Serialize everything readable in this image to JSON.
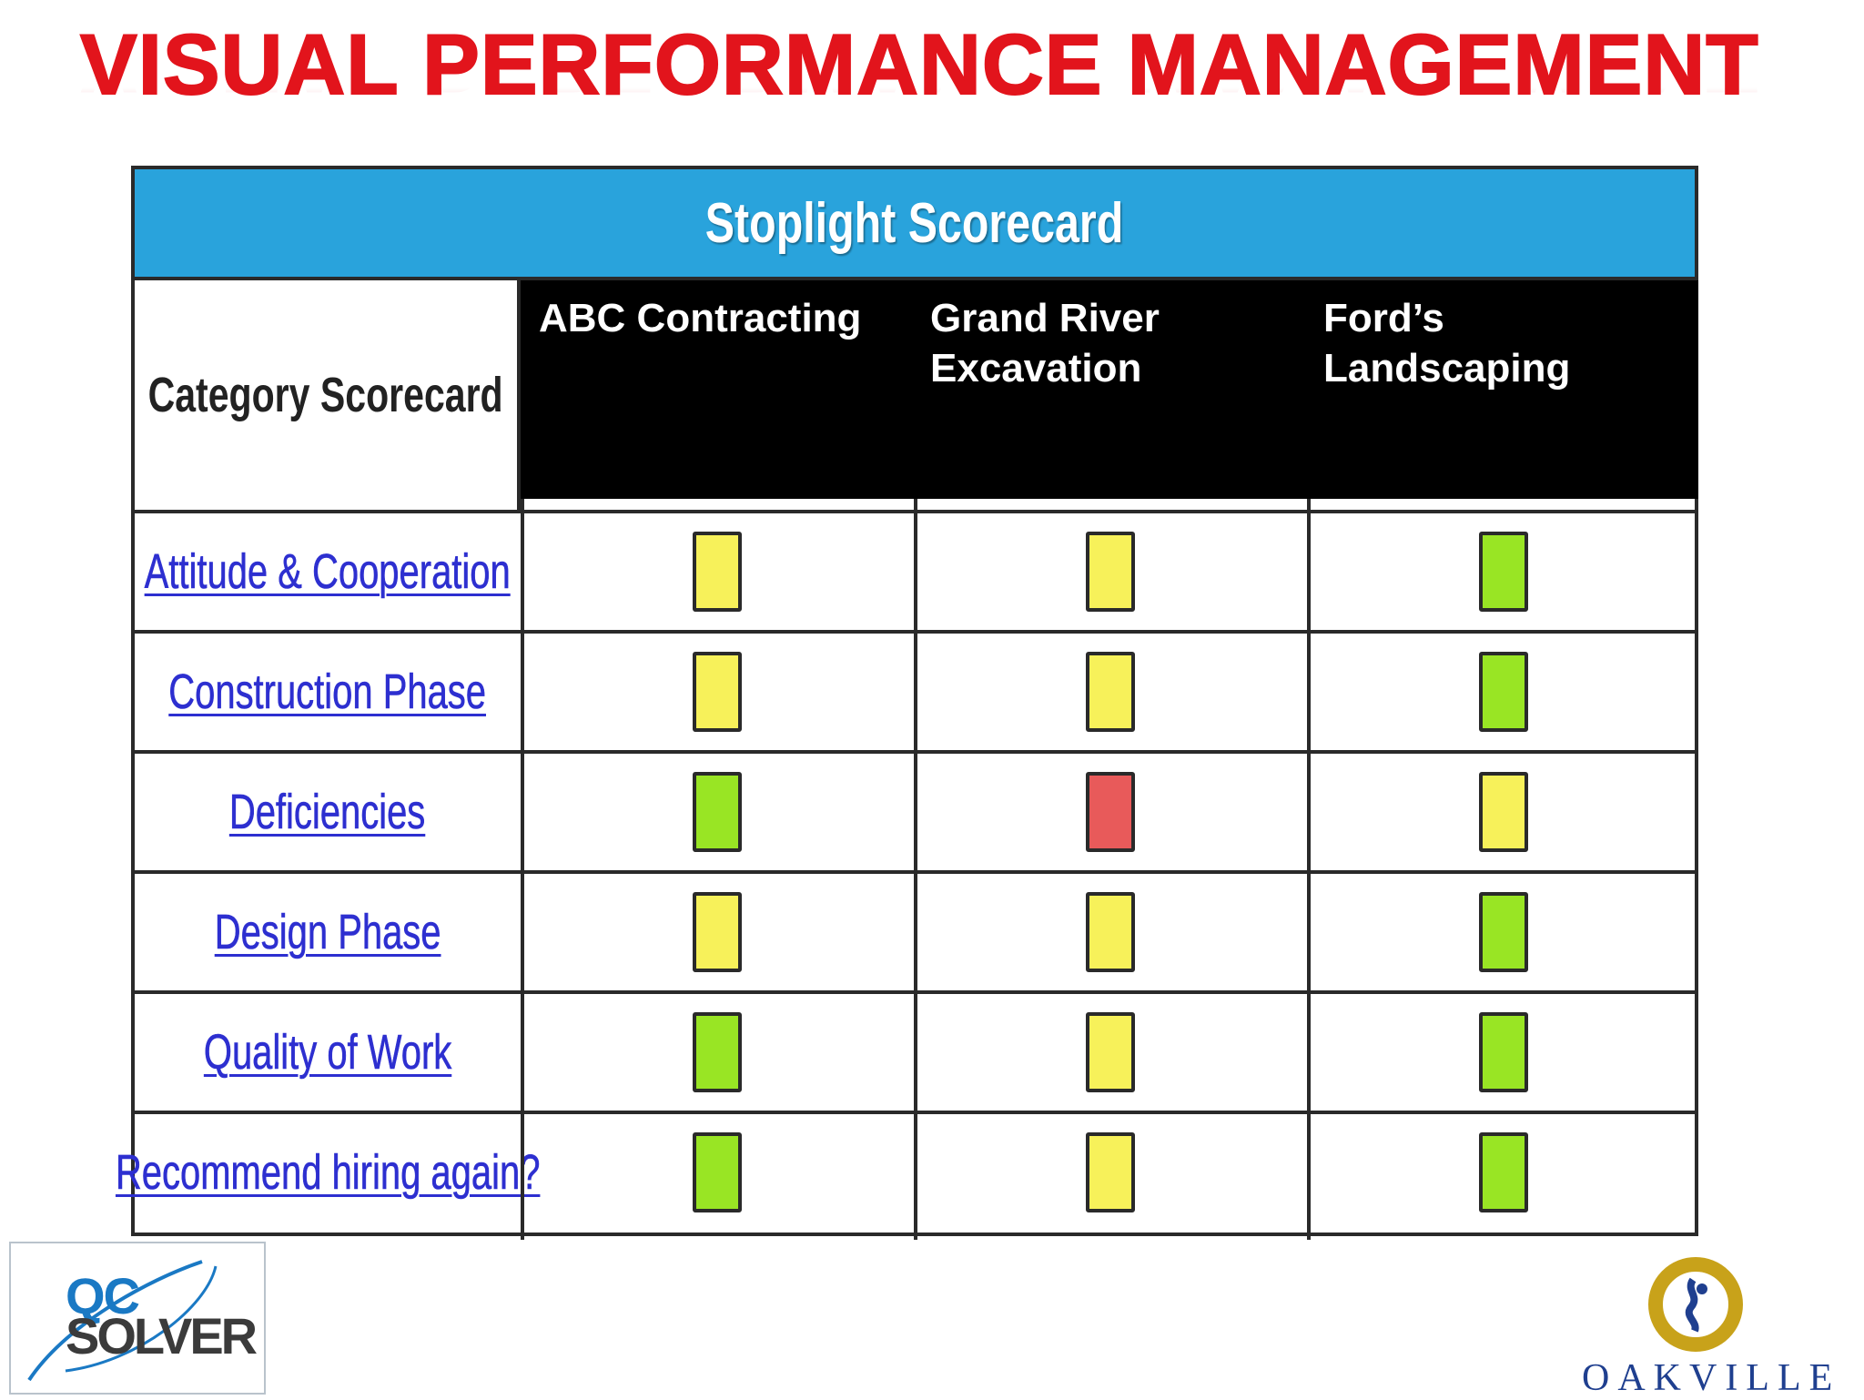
{
  "slide_title": "VISUAL PERFORMANCE MANAGEMENT",
  "scorecard": {
    "header": "Stoplight Scorecard",
    "category_header": "Category Scorecard",
    "companies": [
      {
        "line1": "ABC Contracting",
        "line2": ""
      },
      {
        "line1": "Grand River",
        "line2": "Excavation"
      },
      {
        "line1": "Ford’s",
        "line2": "Landscaping"
      }
    ],
    "status_colors": {
      "green": "#99e524",
      "yellow": "#f7f15a",
      "red": "#e85a5a"
    },
    "rows": [
      {
        "category": "Attitude & Cooperation",
        "ratings": [
          "yellow",
          "yellow",
          "green"
        ]
      },
      {
        "category": "Construction Phase",
        "ratings": [
          "yellow",
          "yellow",
          "green"
        ]
      },
      {
        "category": "Deficiencies",
        "ratings": [
          "green",
          "red",
          "yellow"
        ]
      },
      {
        "category": "Design Phase",
        "ratings": [
          "yellow",
          "yellow",
          "green"
        ]
      },
      {
        "category": "Quality of Work",
        "ratings": [
          "green",
          "yellow",
          "green"
        ]
      },
      {
        "category": "Recommend hiring again?",
        "ratings": [
          "green",
          "yellow",
          "green"
        ]
      }
    ]
  },
  "logos": {
    "qc_solver_line1": "QC",
    "qc_solver_line2": "SOLVER",
    "oakville": "OAKVILLE"
  }
}
